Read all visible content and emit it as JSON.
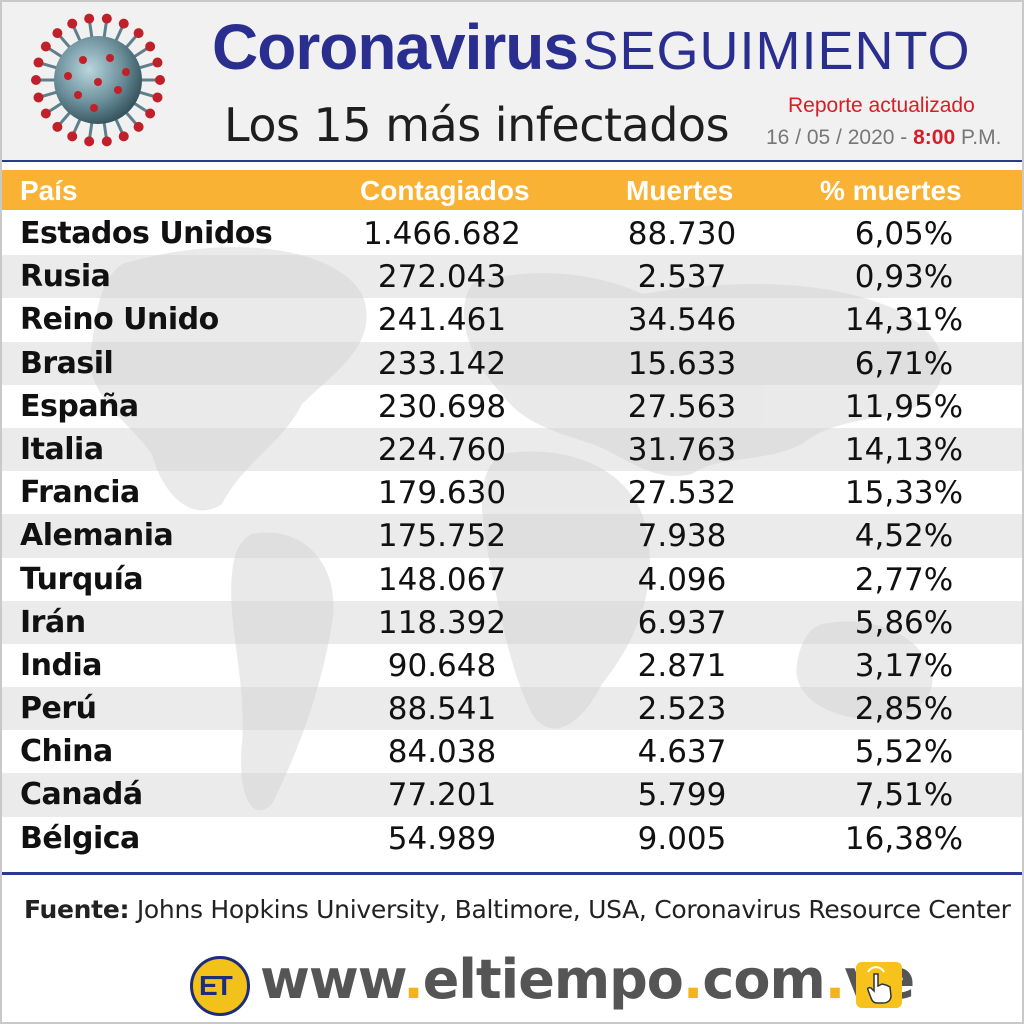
{
  "header": {
    "title_big": "Coronavirus",
    "title_small": "SEGUIMIENTO",
    "subtitle": "Los 15 más infectados",
    "report_label": "Reporte actualizado",
    "report_date": "16 / 05 / 2020 - ",
    "report_time": "8:00",
    "report_ampm": " P.M."
  },
  "table": {
    "headers": [
      "País",
      "Contagiados",
      "Muertes",
      "% muertes"
    ],
    "rows": [
      [
        "Estados Unidos",
        "1.466.682",
        "88.730",
        "6,05%"
      ],
      [
        "Rusia",
        "272.043",
        "2.537",
        "0,93%"
      ],
      [
        "Reino Unido",
        "241.461",
        "34.546",
        "14,31%"
      ],
      [
        "Brasil",
        "233.142",
        "15.633",
        "6,71%"
      ],
      [
        "España",
        "230.698",
        "27.563",
        "11,95%"
      ],
      [
        "Italia",
        "224.760",
        "31.763",
        "14,13%"
      ],
      [
        "Francia",
        "179.630",
        "27.532",
        "15,33%"
      ],
      [
        "Alemania",
        "175.752",
        "7.938",
        "4,52%"
      ],
      [
        "Turquía",
        "148.067",
        "4.096",
        "2,77%"
      ],
      [
        "Irán",
        "118.392",
        "6.937",
        "5,86%"
      ],
      [
        "India",
        "90.648",
        "2.871",
        "3,17%"
      ],
      [
        "Perú",
        "88.541",
        "2.523",
        "2,85%"
      ],
      [
        "China",
        "84.038",
        "4.637",
        "5,52%"
      ],
      [
        "Canadá",
        "77.201",
        "5.799",
        "7,51%"
      ],
      [
        "Bélgica",
        "54.989",
        "9.005",
        "16,38%"
      ]
    ]
  },
  "source": {
    "label": "Fuente:",
    "text": " Johns Hopkins University, Baltimore, USA, Coronavirus Resource Center"
  },
  "footer": {
    "logo_text": "ET",
    "url_parts": [
      "www",
      ".",
      "eltiempo",
      ".",
      "com",
      ".",
      "ve"
    ]
  },
  "colors": {
    "title_blue": "#2a2f8f",
    "header_orange": "#f9b234",
    "accent_red": "#d71e27",
    "divider_blue": "#2c3a8c"
  },
  "icons": [
    "coronavirus-icon",
    "eltiempo-logo-icon",
    "touch-hand-icon"
  ]
}
